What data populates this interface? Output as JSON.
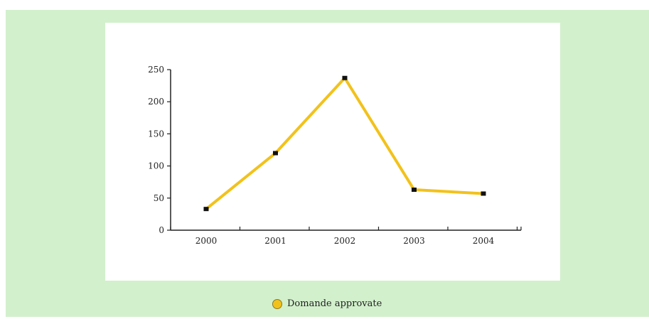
{
  "colors": {
    "panel_bg": "#d2f0cc",
    "card_bg": "#ffffff",
    "line": "#f2c21b",
    "marker": "#111111",
    "axis": "#222222"
  },
  "legend": {
    "label": "Domande approvate",
    "icon": "circle-legend-icon"
  },
  "chart_data": {
    "type": "line",
    "title": "",
    "xlabel": "",
    "ylabel": "",
    "categories": [
      "2000",
      "2001",
      "2002",
      "2003",
      "2004"
    ],
    "ylim": [
      0,
      250
    ],
    "yticks": [
      0,
      50,
      100,
      150,
      200,
      250
    ],
    "grid": false,
    "legend_position": "bottom-center",
    "series": [
      {
        "name": "Domande approvate",
        "values": [
          33,
          120,
          237,
          63,
          57
        ]
      }
    ]
  }
}
